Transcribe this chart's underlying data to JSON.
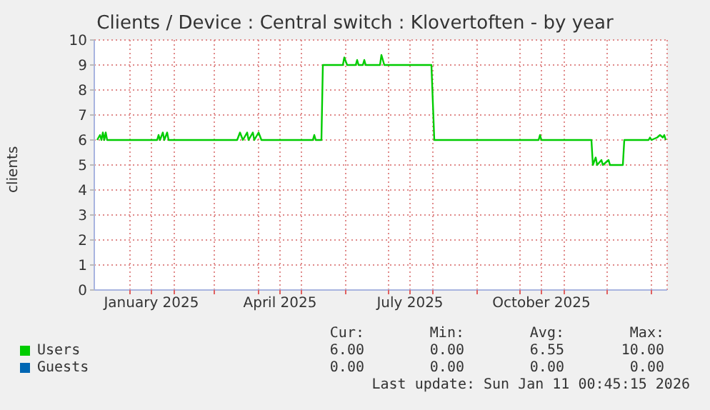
{
  "chart_data": {
    "type": "line",
    "title": "Clients / Device : Central switch : Klovertoften - by year",
    "ylabel": "clients",
    "xlim": [
      "2024-12-07",
      "2026-01-12"
    ],
    "xticks": [
      {
        "value": "2025-01-01",
        "label": null
      },
      {
        "value": "2025-01-16",
        "label": "January 2025"
      },
      {
        "value": "2025-02-01",
        "label": null
      },
      {
        "value": "2025-03-01",
        "label": null
      },
      {
        "value": "2025-04-01",
        "label": null
      },
      {
        "value": "2025-04-16",
        "label": "April 2025"
      },
      {
        "value": "2025-05-01",
        "label": null
      },
      {
        "value": "2025-06-01",
        "label": null
      },
      {
        "value": "2025-07-01",
        "label": null
      },
      {
        "value": "2025-07-16",
        "label": "July 2025"
      },
      {
        "value": "2025-08-01",
        "label": null
      },
      {
        "value": "2025-09-01",
        "label": null
      },
      {
        "value": "2025-10-01",
        "label": null
      },
      {
        "value": "2025-10-16",
        "label": "October 2025"
      },
      {
        "value": "2025-11-01",
        "label": null
      },
      {
        "value": "2025-12-01",
        "label": null
      },
      {
        "value": "2026-01-01",
        "label": null
      }
    ],
    "ylim": [
      0,
      10
    ],
    "yticks": [
      0,
      1,
      2,
      3,
      4,
      5,
      6,
      7,
      8,
      9,
      10
    ],
    "grid": true,
    "legend": "bottom",
    "marker": "none",
    "line_style": "solid",
    "series": [
      {
        "name": "Users",
        "color": "#00cc00",
        "x": [
          "2024-12-09",
          "2024-12-11",
          "2024-12-12",
          "2024-12-13",
          "2024-12-14",
          "2024-12-15",
          "2024-12-16",
          "2025-01-20",
          "2025-01-21",
          "2025-01-22",
          "2025-01-24",
          "2025-01-25",
          "2025-01-27",
          "2025-01-28",
          "2025-03-17",
          "2025-03-19",
          "2025-03-21",
          "2025-03-24",
          "2025-03-25",
          "2025-03-28",
          "2025-03-29",
          "2025-04-01",
          "2025-04-03",
          "2025-05-09",
          "2025-05-10",
          "2025-05-11",
          "2025-05-15",
          "2025-05-16",
          "2025-05-30",
          "2025-05-31",
          "2025-06-02",
          "2025-06-08",
          "2025-06-09",
          "2025-06-10",
          "2025-06-13",
          "2025-06-14",
          "2025-06-15",
          "2025-06-25",
          "2025-06-26",
          "2025-06-28",
          "2025-07-31",
          "2025-08-02",
          "2025-10-14",
          "2025-10-15",
          "2025-10-16",
          "2025-11-20",
          "2025-11-21",
          "2025-11-23",
          "2025-11-24",
          "2025-11-27",
          "2025-11-28",
          "2025-12-02",
          "2025-12-03",
          "2025-12-12",
          "2025-12-13",
          "2025-12-30",
          "2025-12-31",
          "2026-01-01",
          "2026-01-05",
          "2026-01-07",
          "2026-01-09",
          "2026-01-10",
          "2026-01-11"
        ],
        "values": [
          6.0,
          6.2,
          6.0,
          6.3,
          6.0,
          6.3,
          6.0,
          6.0,
          6.2,
          6.0,
          6.3,
          6.0,
          6.3,
          6.0,
          6.0,
          6.3,
          6.0,
          6.3,
          6.0,
          6.3,
          6.0,
          6.3,
          6.0,
          6.0,
          6.2,
          6.0,
          6.0,
          9.0,
          9.0,
          9.3,
          9.0,
          9.0,
          9.2,
          9.0,
          9.0,
          9.2,
          9.0,
          9.0,
          9.4,
          9.0,
          9.0,
          6.0,
          6.0,
          6.2,
          6.0,
          6.0,
          5.0,
          5.3,
          5.0,
          5.2,
          5.0,
          5.2,
          5.0,
          5.0,
          6.0,
          6.0,
          6.1,
          6.0,
          6.1,
          6.2,
          6.1,
          6.2,
          6.0
        ]
      },
      {
        "name": "Guests",
        "color": "#0066b3"
      }
    ],
    "annotations": [
      "Cur:",
      "Min:",
      "Avg:",
      "Max:",
      "6.00",
      "0.00",
      "6.55",
      "10.00",
      "0.00",
      "0.00",
      "0.00",
      "0.00",
      "Last update: Sun Jan 11 00:45:15 2026"
    ]
  }
}
